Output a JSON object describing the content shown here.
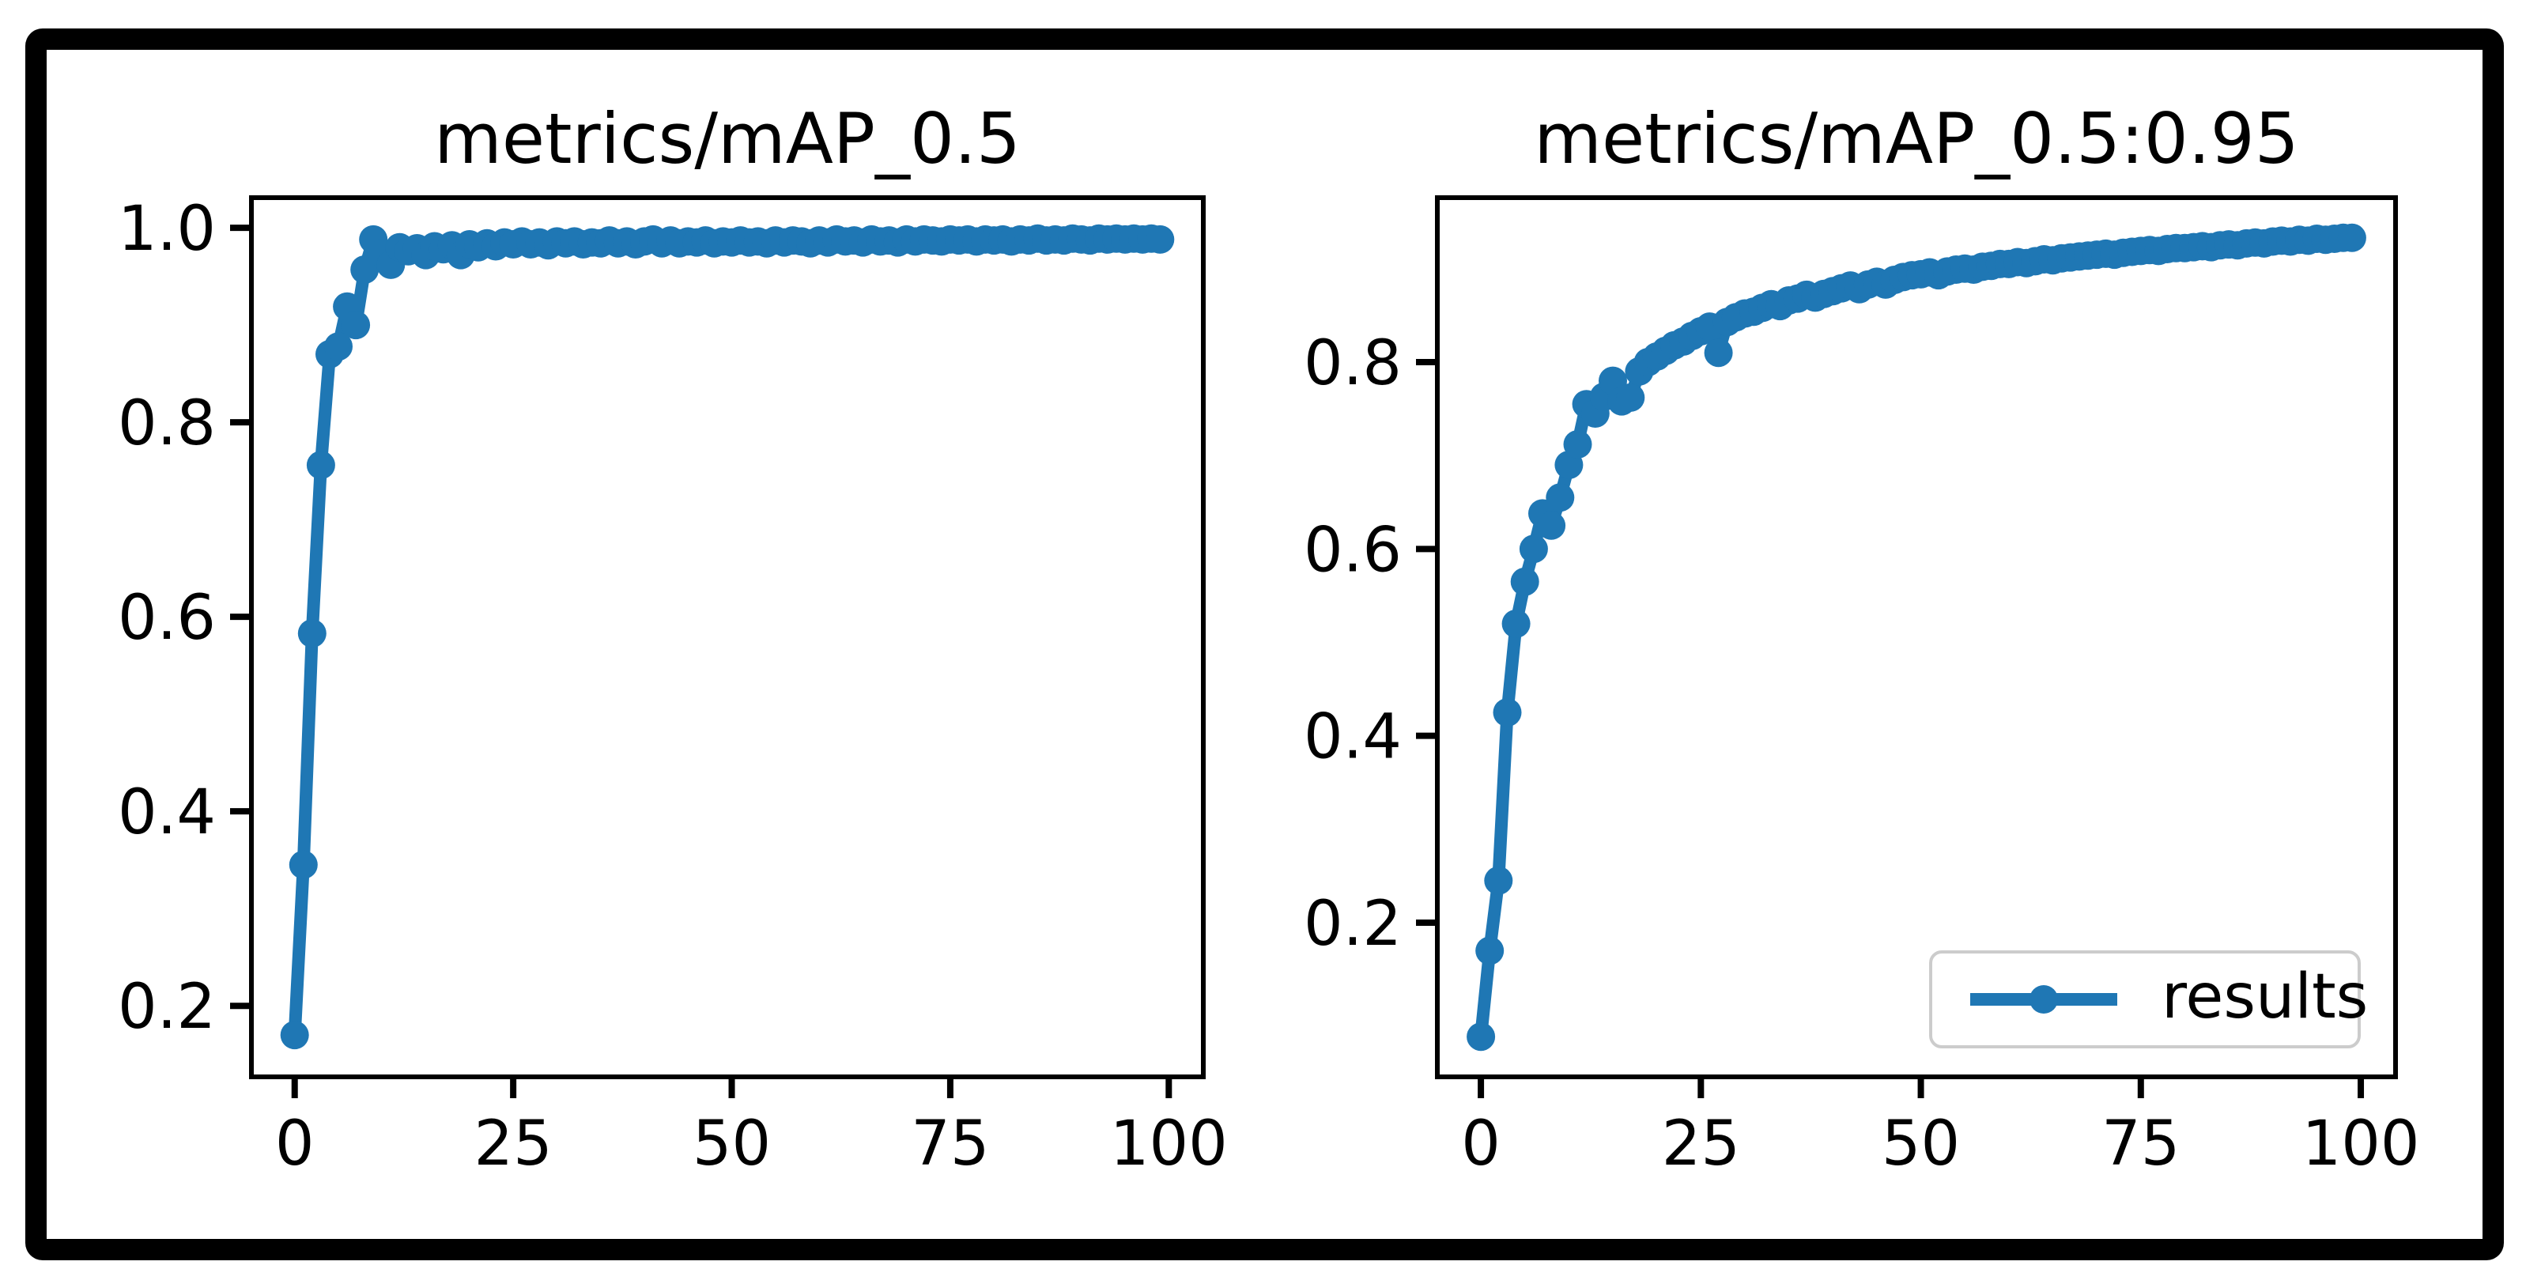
{
  "figure": {
    "background": "#ffffff",
    "border_color": "#000000",
    "accent_color": "#1f77b4",
    "axis_color": "#000000",
    "legend_border_color": "#cccccc"
  },
  "legend": {
    "label": "results",
    "position": "lower right",
    "panel": "right"
  },
  "chart_data": [
    {
      "type": "line",
      "title": "metrics/mAP_0.5",
      "series_name": "results",
      "x_range": [
        0,
        99
      ],
      "xlim": [
        -4.95,
        103.95
      ],
      "ylim": [
        0.127,
        1.031
      ],
      "xticks": {
        "values": [
          0,
          25,
          50,
          75,
          100
        ],
        "labels": [
          "0",
          "25",
          "50",
          "75",
          "100"
        ]
      },
      "yticks": {
        "values": [
          0.2,
          0.4,
          0.6,
          0.8,
          1.0
        ],
        "labels": [
          "0.2",
          "0.4",
          "0.6",
          "0.8",
          "1.0"
        ]
      },
      "grid": false,
      "legend_visible": false,
      "values": [
        0.17,
        0.345,
        0.583,
        0.756,
        0.87,
        0.878,
        0.919,
        0.9,
        0.957,
        0.988,
        0.974,
        0.962,
        0.98,
        0.976,
        0.979,
        0.972,
        0.981,
        0.978,
        0.982,
        0.972,
        0.983,
        0.98,
        0.984,
        0.981,
        0.985,
        0.983,
        0.986,
        0.983,
        0.985,
        0.982,
        0.986,
        0.984,
        0.986,
        0.983,
        0.985,
        0.984,
        0.987,
        0.984,
        0.986,
        0.983,
        0.986,
        0.988,
        0.984,
        0.987,
        0.984,
        0.986,
        0.985,
        0.987,
        0.984,
        0.986,
        0.985,
        0.987,
        0.985,
        0.986,
        0.984,
        0.987,
        0.985,
        0.987,
        0.986,
        0.984,
        0.987,
        0.985,
        0.988,
        0.986,
        0.987,
        0.985,
        0.988,
        0.986,
        0.987,
        0.985,
        0.988,
        0.986,
        0.988,
        0.987,
        0.986,
        0.988,
        0.987,
        0.988,
        0.986,
        0.988,
        0.987,
        0.988,
        0.986,
        0.988,
        0.987,
        0.989,
        0.987,
        0.988,
        0.987,
        0.989,
        0.988,
        0.987,
        0.989,
        0.988,
        0.989,
        0.988,
        0.989,
        0.988,
        0.989,
        0.988
      ]
    },
    {
      "type": "line",
      "title": "metrics/mAP_0.5:0.95",
      "series_name": "results",
      "x_range": [
        0,
        99
      ],
      "xlim": [
        -4.95,
        103.95
      ],
      "ylim": [
        0.035,
        0.976
      ],
      "xticks": {
        "values": [
          0,
          25,
          50,
          75,
          100
        ],
        "labels": [
          "0",
          "25",
          "50",
          "75",
          "100"
        ]
      },
      "yticks": {
        "values": [
          0.2,
          0.4,
          0.6,
          0.8
        ],
        "labels": [
          "0.2",
          "0.4",
          "0.6",
          "0.8"
        ]
      },
      "grid": false,
      "legend_visible": true,
      "values": [
        0.078,
        0.17,
        0.245,
        0.425,
        0.52,
        0.565,
        0.6,
        0.638,
        0.625,
        0.655,
        0.69,
        0.712,
        0.755,
        0.745,
        0.763,
        0.78,
        0.758,
        0.762,
        0.79,
        0.8,
        0.806,
        0.812,
        0.818,
        0.822,
        0.828,
        0.833,
        0.838,
        0.81,
        0.843,
        0.848,
        0.852,
        0.854,
        0.858,
        0.862,
        0.86,
        0.866,
        0.868,
        0.872,
        0.869,
        0.873,
        0.876,
        0.879,
        0.882,
        0.878,
        0.883,
        0.886,
        0.883,
        0.888,
        0.891,
        0.893,
        0.894,
        0.896,
        0.893,
        0.897,
        0.899,
        0.9,
        0.899,
        0.902,
        0.903,
        0.905,
        0.905,
        0.907,
        0.906,
        0.908,
        0.91,
        0.909,
        0.911,
        0.912,
        0.913,
        0.914,
        0.915,
        0.916,
        0.915,
        0.917,
        0.918,
        0.919,
        0.92,
        0.919,
        0.921,
        0.922,
        0.922,
        0.923,
        0.924,
        0.923,
        0.925,
        0.926,
        0.925,
        0.927,
        0.928,
        0.927,
        0.929,
        0.93,
        0.929,
        0.931,
        0.93,
        0.932,
        0.931,
        0.932,
        0.933,
        0.933
      ]
    }
  ]
}
